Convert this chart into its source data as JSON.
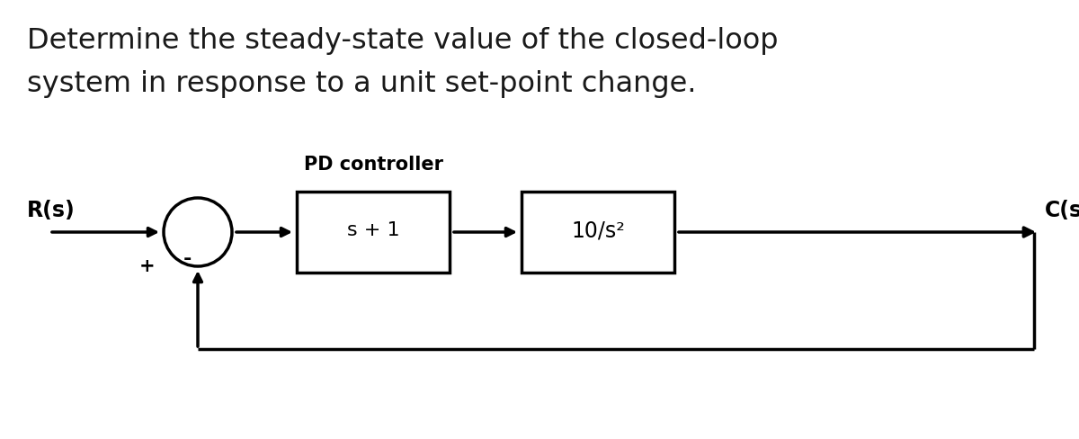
{
  "title_line1": "Determine the steady-state value of the closed-loop",
  "title_line2": "system in response to a unit set-point change.",
  "title_fontsize": 23,
  "title_color": "#1a1a1a",
  "bg_color": "#ffffff",
  "label_Rs": "R(s)",
  "label_Cs": "C(s)",
  "label_plus": "+",
  "label_minus": "-",
  "pd_label": "PD controller",
  "block1_label": "s + 1",
  "block2_label": "10/s²",
  "diagram_fontsize": 15,
  "line_color": "#000000",
  "line_width": 2.5,
  "sum_circle_lw": 2.5
}
